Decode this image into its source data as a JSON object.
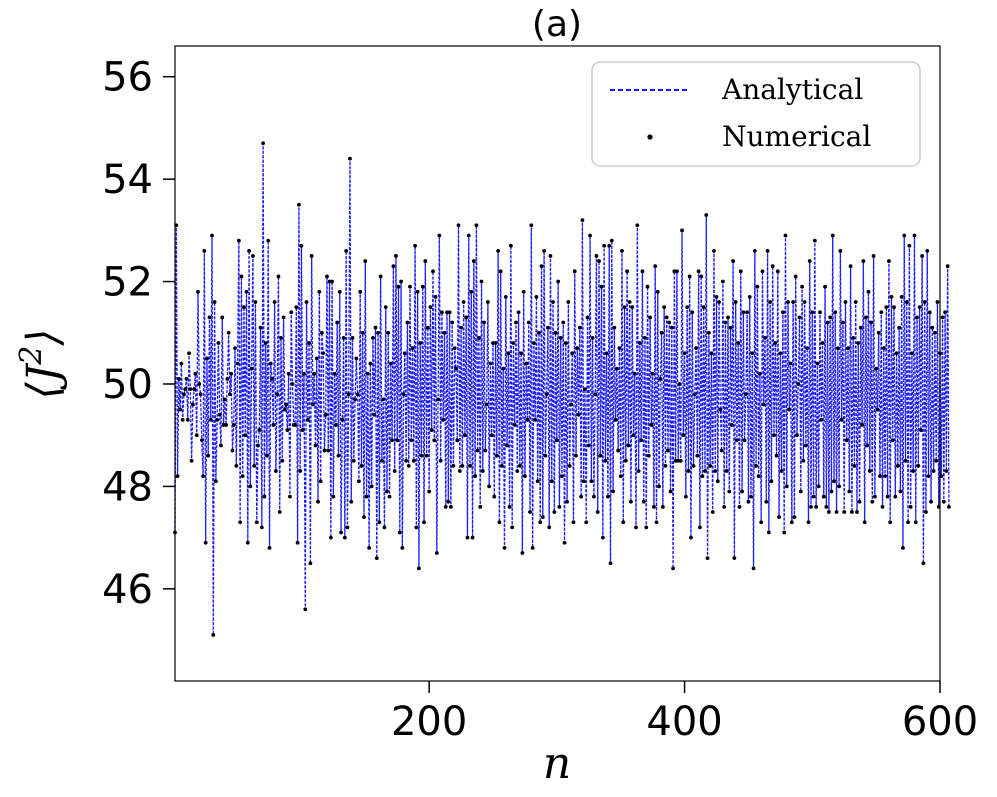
{
  "chart_data": {
    "type": "line",
    "title": "(a)",
    "xlabel": "n",
    "ylabel_base": "J",
    "ylabel_sup": "2",
    "xlim": [
      1,
      600
    ],
    "ylim": [
      44.2,
      56.6
    ],
    "x_ticks": [
      200,
      400,
      600
    ],
    "y_ticks": [
      46,
      48,
      50,
      52,
      54,
      56
    ],
    "grid": false,
    "legend_position": "top-right",
    "colors": {
      "analytical": "#1a1aff",
      "numerical": "#000000"
    },
    "series": [
      {
        "name": "Analytical",
        "style": "dashed-line",
        "color": "#1a1aff",
        "x_start": 1,
        "x_step": 1,
        "values": [
          47.1,
          53.1,
          48.2,
          50.1,
          49.5,
          50.4,
          49.3,
          49.8,
          49.9,
          50.1,
          49.3,
          50.6,
          49.9,
          48.5,
          49.6,
          49.9,
          50.2,
          49.0,
          51.8,
          50.0,
          49.8,
          48.9,
          48.2,
          52.6,
          46.9,
          50.5,
          48.6,
          51.3,
          49.3,
          52.9,
          45.1,
          51.6,
          48.1,
          49.3,
          50.8,
          49.4,
          48.8,
          51.3,
          49.2,
          49.7,
          49.2,
          50.1,
          51.0,
          49.8,
          50.2,
          48.7,
          49.2,
          50.7,
          48.4,
          50.4,
          52.8,
          47.3,
          52.1,
          48.2,
          51.5,
          49.0,
          51.8,
          46.9,
          52.6,
          48.0,
          50.3,
          52.5,
          48.4,
          51.6,
          47.3,
          48.8,
          49.1,
          51.1,
          47.2,
          54.7,
          47.8,
          50.8,
          48.6,
          52.8,
          46.8,
          50.4,
          50.1,
          49.2,
          51.6,
          48.3,
          49.8,
          52.1,
          47.5,
          50.9,
          48.5,
          51.3,
          49.5,
          49.6,
          49.1,
          50.2,
          47.8,
          51.4,
          50.0,
          49.2,
          49.2,
          51.5,
          46.9,
          53.5,
          48.3,
          52.7,
          49.1,
          50.2,
          45.6,
          51.6,
          49.3,
          50.8,
          46.5,
          52.5,
          49.6,
          50.2,
          48.8,
          50.5,
          47.7,
          51.8,
          48.1,
          51.0,
          50.6,
          48.7,
          49.4,
          52.1,
          48.7,
          52.0,
          47.0,
          52.0,
          47.8,
          50.2,
          49.2,
          51.2,
          48.6,
          51.8,
          47.1,
          49.3,
          50.9,
          47.0,
          52.6,
          47.2,
          49.8,
          54.4,
          47.7,
          50.9,
          48.5,
          49.7,
          50.5,
          49.8,
          48.1,
          51.8,
          48.4,
          51.0,
          47.4,
          52.4,
          47.8,
          50.2,
          46.8,
          50.4,
          48.0,
          50.9,
          49.4,
          51.1,
          46.6,
          51.0,
          47.3,
          52.1,
          48.5,
          49.7,
          47.2,
          51.5,
          47.9,
          51.0,
          47.8,
          50.4,
          48.9,
          52.3,
          48.3,
          52.5,
          48.9,
          51.9,
          47.1,
          52.0,
          46.8,
          49.8,
          50.6,
          48.5,
          51.2,
          48.4,
          51.9,
          48.9,
          50.7,
          48.5,
          52.7,
          47.2,
          51.8,
          46.4,
          50.8,
          48.6,
          51.9,
          47.3,
          52.4,
          48.6,
          51.1,
          47.9,
          51.5,
          49.1,
          52.2,
          48.9,
          51.7,
          46.7,
          49.7,
          52.9,
          48.5,
          51.4,
          49.3,
          51.0,
          47.6,
          51.4,
          47.7,
          51.4,
          47.6,
          51.2,
          48.4,
          50.7,
          50.3,
          48.9,
          53.1,
          48.3,
          51.1,
          48.4,
          51.6,
          49.0,
          51.3,
          47.0,
          52.9,
          48.4,
          51.8,
          47.0,
          52.4,
          48.2,
          53.1,
          48.7,
          50.9,
          47.6,
          52.0,
          48.3,
          51.2,
          48.7,
          49.6,
          51.6,
          48.0,
          50.4,
          49.0,
          50.8,
          47.8,
          50.8,
          48.6,
          52.6,
          47.3,
          52.2,
          48.4,
          50.3,
          46.8,
          51.7,
          48.8,
          50.6,
          47.6,
          52.7,
          47.2,
          50.8,
          49.2,
          51.2,
          48.3,
          51.4,
          48.4,
          50.6,
          46.7,
          51.8,
          48.2,
          50.4,
          49.3,
          51.2,
          47.5,
          53.1,
          46.8,
          50.8,
          49.3,
          51.7,
          48.1,
          51.0,
          47.3,
          52.3,
          47.4,
          52.6,
          48.6,
          49.8,
          51.1,
          47.2,
          52.5,
          48.1,
          51.6,
          47.5,
          51.0,
          48.9,
          52.0,
          47.6,
          50.9,
          48.2,
          51.2,
          46.9,
          50.8,
          47.7,
          51.6,
          48.4,
          49.6,
          50.6,
          47.3,
          52.2,
          48.6,
          50.7,
          49.4,
          51.1,
          47.8,
          53.2,
          48.1,
          49.9,
          47.3,
          51.3,
          48.8,
          52.9,
          48.1,
          50.9,
          47.8,
          49.8,
          52.5,
          47.5,
          52.4,
          48.6,
          51.9,
          47.0,
          52.7,
          48.5,
          50.6,
          47.8,
          52.7,
          46.5,
          52.8,
          47.9,
          51.1,
          49.3,
          50.3,
          48.7,
          50.7,
          48.2,
          52.6,
          47.3,
          51.5,
          48.5,
          52.2,
          48.8,
          51.6,
          47.7,
          51.5,
          49.0,
          50.2,
          47.2,
          53.1,
          48.3,
          50.8,
          48.9,
          52.2,
          47.7,
          50.9,
          47.2,
          51.9,
          48.6,
          51.3,
          49.2,
          50.2,
          47.6,
          52.3,
          47.3,
          51.8,
          48.0,
          50.1,
          51.0,
          47.6,
          51.5,
          48.4,
          51.3,
          48.7,
          51.2,
          47.9,
          51.1,
          46.4,
          52.2,
          48.5,
          52.2,
          48.5,
          50.0,
          48.5,
          53.0,
          49.0,
          50.6,
          47.8,
          51.5,
          48.3,
          52.1,
          47.0,
          51.4,
          48.4,
          49.8,
          50.7,
          48.6,
          52.2,
          47.2,
          52.1,
          48.2,
          51.5,
          48.3,
          53.3,
          46.6,
          51.0,
          48.4,
          50.6,
          47.5,
          52.6,
          48.3,
          51.7,
          48.1,
          51.6,
          49.5,
          48.7,
          52.0,
          47.6,
          51.2,
          48.3,
          51.3,
          47.9,
          51.1,
          49.2,
          52.4,
          46.6,
          51.6,
          48.9,
          50.8,
          47.6,
          52.2,
          47.9,
          51.4,
          48.9,
          49.8,
          51.4,
          47.7,
          51.7,
          47.8,
          50.6,
          46.4,
          52.6,
          48.4,
          51.9,
          48.2,
          50.2,
          47.3,
          52.2,
          49.6,
          50.9,
          47.7,
          52.6,
          47.1,
          51.6,
          48.1,
          52.3,
          49.0,
          50.8,
          48.6,
          52.2,
          47.4,
          50.6,
          48.3,
          51.4,
          47.1,
          52.9,
          48.0,
          51.6,
          49.5,
          50.4,
          47.3,
          51.6,
          47.4,
          52.1,
          49.0,
          50.0,
          51.3,
          47.9,
          51.9,
          48.5,
          51.6,
          48.8,
          50.7,
          47.3,
          52.4,
          47.6,
          51.4,
          47.8,
          52.8,
          47.6,
          50.4,
          48.0,
          51.4,
          49.3,
          50.8,
          47.8,
          51.9,
          47.6,
          51.2,
          47.5,
          51.3,
          47.9,
          52.9,
          48.1,
          51.4,
          47.5,
          50.7,
          48.0,
          52.6,
          49.3,
          51.2,
          47.5,
          51.6,
          48.9,
          50.7,
          47.9,
          52.3,
          47.5,
          50.9,
          48.4,
          51.6,
          47.5,
          50.8,
          47.7,
          51.1,
          49.2,
          52.4,
          47.3,
          51.3,
          48.8,
          51.8,
          48.3,
          51.2,
          47.7,
          52.5,
          47.8,
          50.3,
          49.5,
          51.0,
          48.2,
          51.4,
          47.6,
          50.7,
          48.2,
          51.5,
          47.8,
          52.4,
          47.3,
          51.7,
          48.9,
          51.5,
          47.8,
          50.6,
          48.4,
          51.1,
          47.9,
          51.7,
          46.8,
          52.9,
          48.5,
          51.6,
          47.3,
          52.7,
          47.6,
          50.6,
          48.3,
          52.9,
          47.3,
          51.3,
          48.4,
          51.5,
          49.1,
          52.5,
          46.5,
          51.6,
          47.5,
          52.6,
          48.2,
          51.4,
          47.7,
          51.1,
          48.3,
          51.0,
          48.5,
          51.6,
          47.6,
          50.6,
          48.2,
          51.3,
          47.7,
          51.4,
          48.3,
          52.3,
          47.6
        ]
      },
      {
        "name": "Numerical",
        "style": "dots",
        "color": "#000000",
        "same_as_series": 0
      }
    ]
  }
}
